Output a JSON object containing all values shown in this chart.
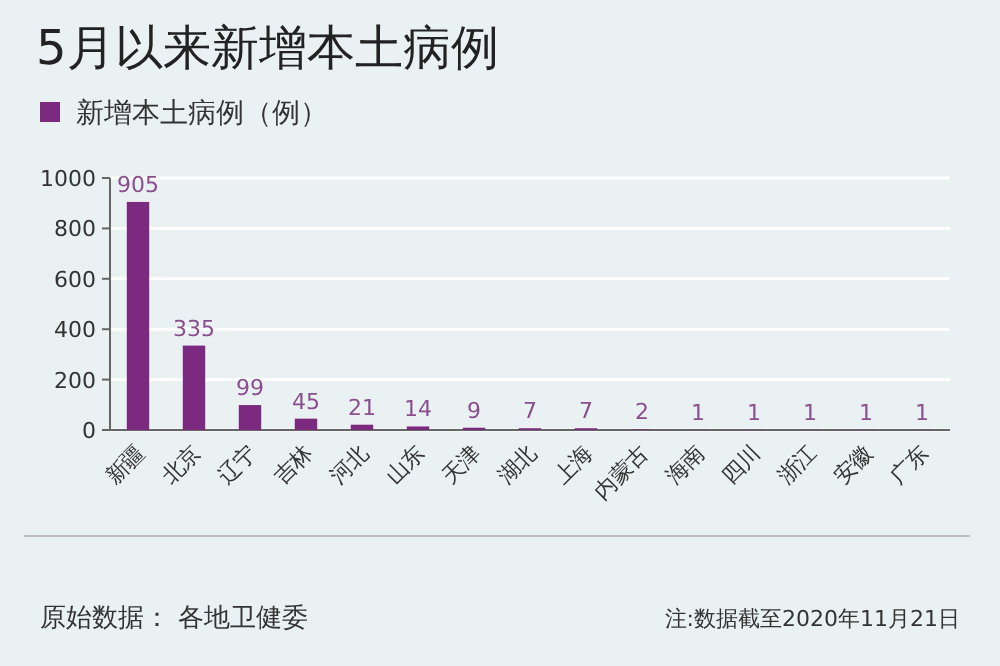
{
  "chart_data": {
    "type": "bar",
    "title": "5月以来新增本土病例",
    "categories": [
      "新疆",
      "北京",
      "辽宁",
      "吉林",
      "河北",
      "山东",
      "天津",
      "湖北",
      "上海",
      "内蒙古",
      "海南",
      "四川",
      "浙江",
      "安徽",
      "广东"
    ],
    "series": [
      {
        "name": "新增本土病例（例）",
        "color": "#7b2a7f",
        "values": [
          905,
          335,
          99,
          45,
          21,
          14,
          9,
          7,
          7,
          2,
          1,
          1,
          1,
          1,
          1
        ]
      }
    ],
    "ylim": [
      0,
      1000
    ],
    "yticks": [
      0,
      200,
      400,
      600,
      800,
      1000
    ],
    "grid": "y",
    "legend": "top left",
    "data_labels": true,
    "annotations": [
      "原始数据：  各地卫健委",
      "注:数据截至2020年11月21日"
    ]
  }
}
